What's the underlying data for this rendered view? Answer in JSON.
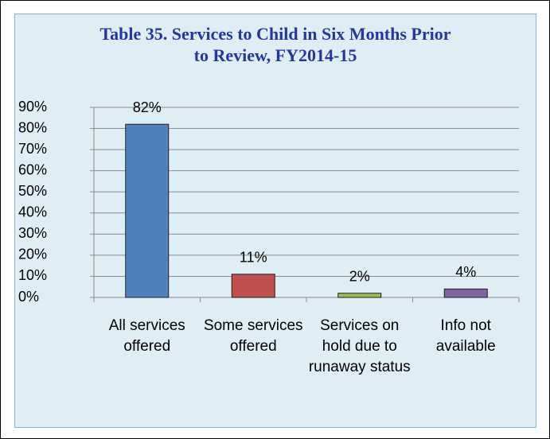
{
  "chart_data": {
    "type": "bar",
    "title": "Table 35. Services to Child in Six Months Prior to Review, FY2014-15",
    "categories": [
      "All services offered",
      "Some services offered",
      "Services on hold due to runaway status",
      "Info not available"
    ],
    "values": [
      82,
      11,
      2,
      4
    ],
    "value_labels": [
      "82%",
      "11%",
      "2%",
      "4%"
    ],
    "colors": [
      "#4f81bd",
      "#c0504d",
      "#9bbb59",
      "#8064a2"
    ],
    "ylim": [
      0,
      90
    ],
    "yticks": [
      {
        "value": 0,
        "label": "0%"
      },
      {
        "value": 10,
        "label": "10%"
      },
      {
        "value": 20,
        "label": "20%"
      },
      {
        "value": 30,
        "label": "30%"
      },
      {
        "value": 40,
        "label": "40%"
      },
      {
        "value": 50,
        "label": "50%"
      },
      {
        "value": 60,
        "label": "60%"
      },
      {
        "value": 70,
        "label": "70%"
      },
      {
        "value": 80,
        "label": "80%"
      },
      {
        "value": 90,
        "label": "90%"
      }
    ],
    "grid": true
  }
}
